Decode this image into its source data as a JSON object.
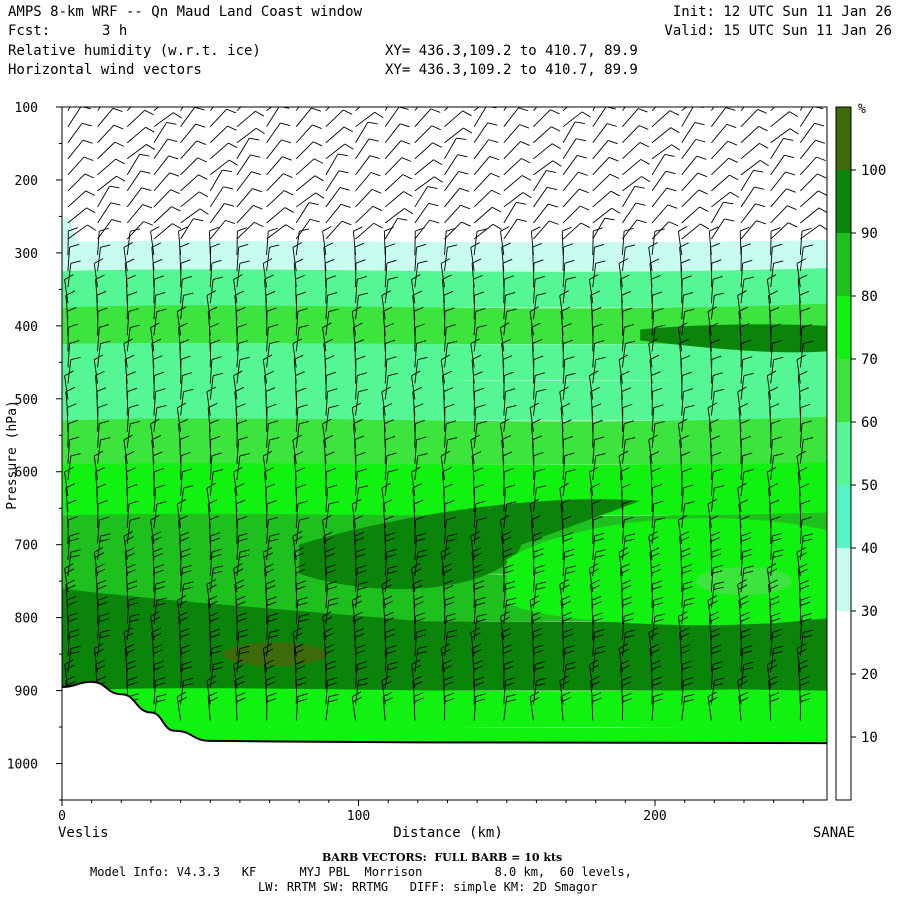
{
  "header": {
    "title": "AMPS 8-km WRF -- Qn Maud Land Coast window",
    "fcst_label": "Fcst:",
    "fcst_value": "3 h",
    "field1": "Relative humidity (w.r.t. ice)",
    "field2": "Horizontal wind vectors",
    "xy1": "XY= 436.3,109.2 to 410.7, 89.9",
    "xy2": "XY= 436.3,109.2 to 410.7, 89.9",
    "init": "Init: 12 UTC Sun 11 Jan 26",
    "valid": "Valid: 15 UTC Sun 11 Jan 26"
  },
  "chart_data": {
    "type": "heatmap",
    "xlabel": "Distance (km)",
    "ylabel": "Pressure (hPa)",
    "xlim": [
      0,
      258
    ],
    "ylim": [
      1050,
      100
    ],
    "x_ticks": [
      0,
      100,
      200
    ],
    "y_ticks": [
      100,
      200,
      300,
      400,
      500,
      600,
      700,
      800,
      900,
      1000
    ],
    "left_endpoint": "Veslis",
    "right_endpoint": "SANAE",
    "colorbar": {
      "unit": "%",
      "levels": [
        10,
        20,
        30,
        40,
        50,
        60,
        70,
        80,
        90,
        100
      ],
      "colors": [
        "#ffffff",
        "#ffffff",
        "#ffffff",
        "#c8fcee",
        "#55f3c6",
        "#55f794",
        "#3ee43e",
        "#11f211",
        "#1ec01e",
        "#0a850a",
        "#3d6b0a"
      ]
    },
    "rh_profile": [
      {
        "p": 100,
        "rh": 5
      },
      {
        "p": 200,
        "rh": 8
      },
      {
        "p": 270,
        "rh": 18
      },
      {
        "p": 300,
        "rh": 38
      },
      {
        "p": 350,
        "rh": 52
      },
      {
        "p": 400,
        "rh": 62
      },
      {
        "p": 450,
        "rh": 55
      },
      {
        "p": 500,
        "rh": 56
      },
      {
        "p": 560,
        "rh": 66
      },
      {
        "p": 620,
        "rh": 76
      },
      {
        "p": 700,
        "rh": 82
      },
      {
        "p": 780,
        "rh": 88
      },
      {
        "p": 830,
        "rh": 92
      },
      {
        "p": 870,
        "rh": 90
      },
      {
        "p": 930,
        "rh": 78
      },
      {
        "p": 970,
        "rh": 72
      }
    ],
    "terrain": [
      {
        "x": 0,
        "p": 895
      },
      {
        "x": 10,
        "p": 888
      },
      {
        "x": 20,
        "p": 905
      },
      {
        "x": 30,
        "p": 930
      },
      {
        "x": 38,
        "p": 955
      },
      {
        "x": 50,
        "p": 969
      },
      {
        "x": 80,
        "p": 970
      },
      {
        "x": 120,
        "p": 971
      },
      {
        "x": 258,
        "p": 972
      }
    ],
    "barb_columns_x": [
      2,
      12,
      22,
      31,
      40,
      50,
      59,
      69,
      79,
      89,
      99,
      109,
      119,
      129,
      139,
      149,
      159,
      169,
      179,
      189,
      199,
      209,
      219,
      229,
      239,
      249
    ],
    "barb_speed_kts_example": 10
  },
  "footer": {
    "barb_note": "BARB VECTORS:  FULL BARB = 10 kts",
    "model_line": "Model Info: V4.3.3   KF      MYJ PBL  Morrison          8.0 km,  60 levels,",
    "physics_line": "LW: RRTM SW: RRTMG   DIFF: simple KM: 2D Smagor"
  }
}
